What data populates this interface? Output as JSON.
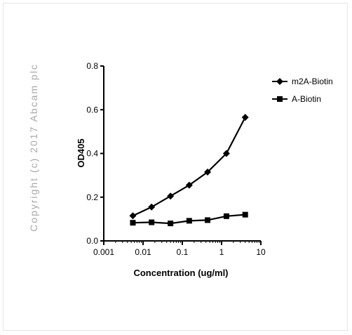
{
  "watermark": "Copyright (c) 2017 Abcam plc",
  "chart_data": {
    "type": "line",
    "xlabel": "Concentration (ug/ml)",
    "ylabel": "OD405",
    "x_scale": "log",
    "xlim": [
      0.001,
      10
    ],
    "ylim": [
      0.0,
      0.8
    ],
    "x_tick_labels": [
      "0.001",
      "0.01",
      "0.1",
      "1",
      "10"
    ],
    "x_tick_values": [
      0.001,
      0.01,
      0.1,
      1,
      10
    ],
    "y_tick_labels": [
      "0.0",
      "0.2",
      "0.4",
      "0.6",
      "0.8"
    ],
    "y_tick_values": [
      0.0,
      0.2,
      0.4,
      0.6,
      0.8
    ],
    "legend_position": "top-right",
    "series": [
      {
        "name": "m2A-Biotin",
        "marker": "diamond",
        "color": "#000000",
        "x": [
          0.0055,
          0.0165,
          0.05,
          0.15,
          0.44,
          1.33,
          4.0
        ],
        "y": [
          0.115,
          0.155,
          0.205,
          0.255,
          0.315,
          0.4,
          0.565
        ]
      },
      {
        "name": "A-Biotin",
        "marker": "square",
        "color": "#000000",
        "x": [
          0.0055,
          0.0165,
          0.05,
          0.15,
          0.44,
          1.33,
          4.0
        ],
        "y": [
          0.083,
          0.085,
          0.08,
          0.092,
          0.095,
          0.113,
          0.12
        ]
      }
    ]
  }
}
